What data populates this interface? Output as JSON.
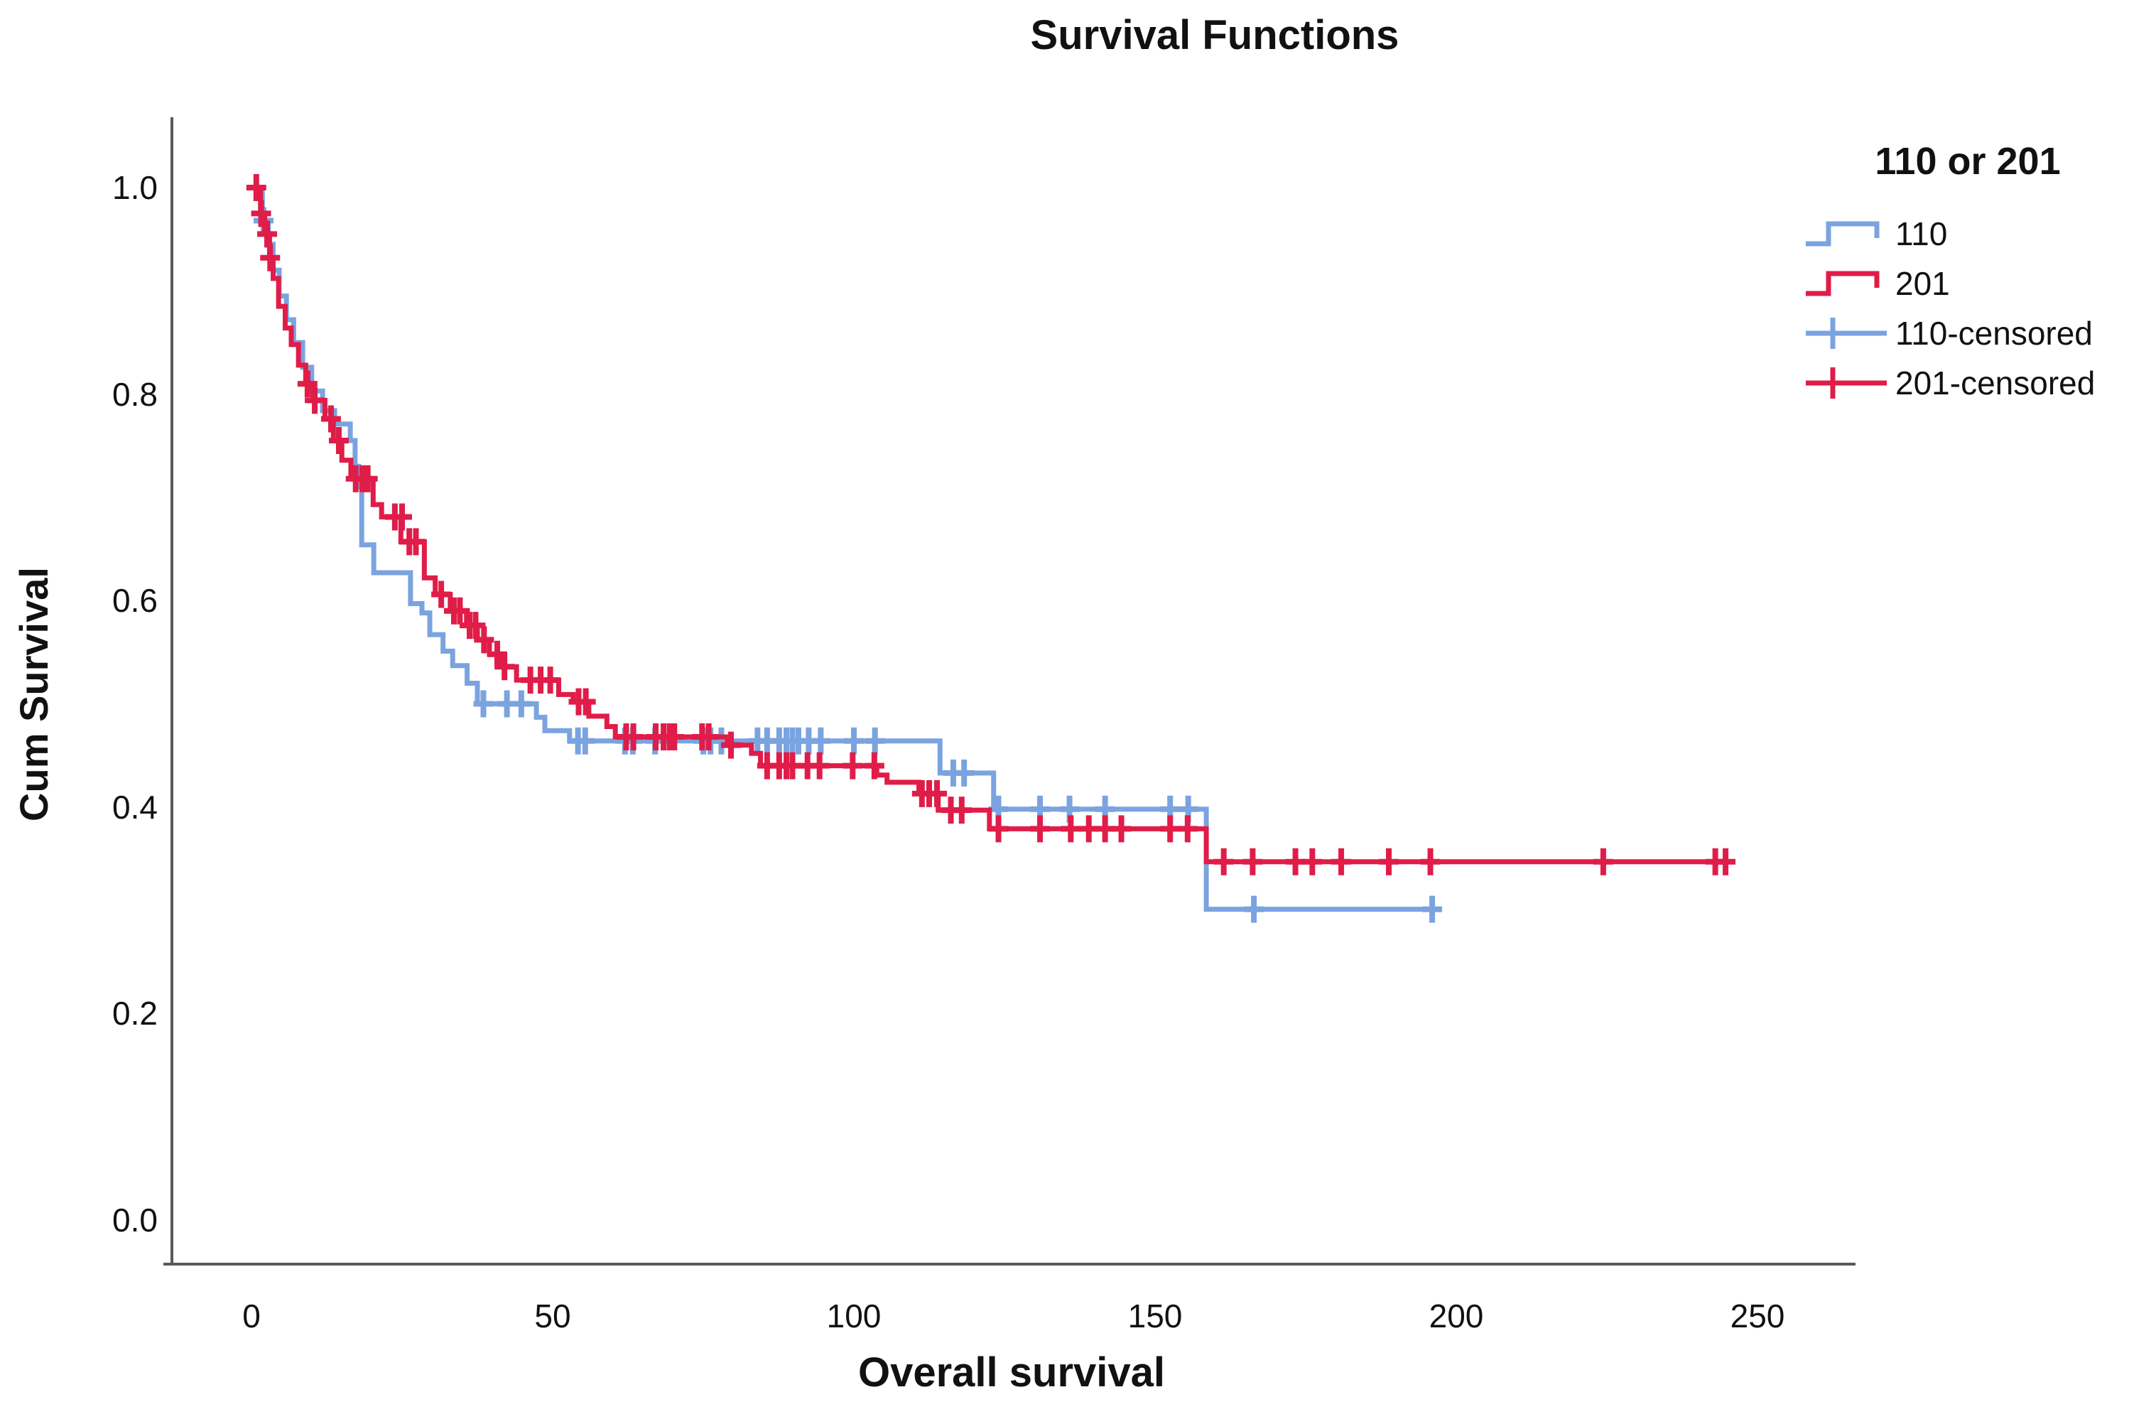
{
  "title": "Survival Functions",
  "y_axis": {
    "label": "Cum Survival",
    "ticks": [
      "1.0",
      "0.8",
      "0.6",
      "0.4",
      "0.2",
      "0.0"
    ]
  },
  "x_axis": {
    "label": "Overall survival",
    "ticks": [
      "0",
      "50",
      "100",
      "150",
      "200",
      "250"
    ]
  },
  "legend": {
    "title": "110 or 201",
    "entries": [
      {
        "label": "110",
        "type": "step",
        "color": "#7AA3E0"
      },
      {
        "label": "201",
        "type": "step",
        "color": "#E01C48"
      },
      {
        "label": "110-censored",
        "type": "censored",
        "color": "#7AA3E0"
      },
      {
        "label": "201-censored",
        "type": "censored",
        "color": "#E01C48"
      }
    ]
  },
  "colors": {
    "blue": "#7AA3E0",
    "red": "#E01C48",
    "axis": "#595959",
    "text": "#111111",
    "background": "#ffffff"
  },
  "chart_data": {
    "type": "line",
    "subtype": "kaplan-meier-step",
    "title": "Survival Functions",
    "xlabel": "Overall survival",
    "ylabel": "Cum Survival",
    "xlim": [
      0,
      265
    ],
    "ylim": [
      0.0,
      1.05
    ],
    "x_ticks": [
      0,
      50,
      100,
      150,
      200,
      250
    ],
    "y_ticks": [
      1.0,
      0.8,
      0.6,
      0.4,
      0.2,
      0.0
    ],
    "grid": false,
    "legend_position": "right",
    "series": [
      {
        "name": "110",
        "color": "#7AA3E0",
        "end_time": 197.5,
        "steps": [
          [
            0,
            1.0
          ],
          [
            1.8,
            0.968
          ],
          [
            2.8,
            0.945
          ],
          [
            3.6,
            0.92
          ],
          [
            4.6,
            0.895
          ],
          [
            5.8,
            0.872
          ],
          [
            7,
            0.85
          ],
          [
            8.5,
            0.826
          ],
          [
            10,
            0.803
          ],
          [
            11.8,
            0.784
          ],
          [
            13.8,
            0.771
          ],
          [
            16.4,
            0.755
          ],
          [
            17.2,
            0.73
          ],
          [
            17.8,
            0.71
          ],
          [
            18.3,
            0.654
          ],
          [
            20.3,
            0.627
          ],
          [
            26.4,
            0.597
          ],
          [
            28.3,
            0.588
          ],
          [
            29.6,
            0.567
          ],
          [
            31.8,
            0.551
          ],
          [
            33.4,
            0.537
          ],
          [
            35.8,
            0.52
          ],
          [
            37.5,
            0.5
          ],
          [
            47.3,
            0.487
          ],
          [
            48.7,
            0.474
          ],
          [
            52.8,
            0.464
          ],
          [
            114.3,
            0.433
          ],
          [
            123.2,
            0.398
          ],
          [
            158.5,
            0.301
          ]
        ],
        "censors": [
          [
            2,
            0.968
          ],
          [
            38.5,
            0.5
          ],
          [
            42.4,
            0.5
          ],
          [
            44.8,
            0.5
          ],
          [
            54.2,
            0.464
          ],
          [
            55.4,
            0.464
          ],
          [
            62,
            0.464
          ],
          [
            63.3,
            0.464
          ],
          [
            67,
            0.464
          ],
          [
            75,
            0.464
          ],
          [
            76.2,
            0.464
          ],
          [
            78,
            0.464
          ],
          [
            84,
            0.464
          ],
          [
            85.6,
            0.464
          ],
          [
            87.6,
            0.464
          ],
          [
            88.8,
            0.464
          ],
          [
            89.8,
            0.464
          ],
          [
            90.8,
            0.464
          ],
          [
            92.5,
            0.464
          ],
          [
            94.5,
            0.464
          ],
          [
            100,
            0.464
          ],
          [
            103.5,
            0.464
          ],
          [
            116.5,
            0.433
          ],
          [
            118.3,
            0.433
          ],
          [
            124,
            0.398
          ],
          [
            130.9,
            0.398
          ],
          [
            135.8,
            0.398
          ],
          [
            141.7,
            0.398
          ],
          [
            152.5,
            0.398
          ],
          [
            155.5,
            0.398
          ],
          [
            166.4,
            0.301
          ],
          [
            196,
            0.301
          ]
        ]
      },
      {
        "name": "201",
        "color": "#E01C48",
        "end_time": 245.6,
        "steps": [
          [
            0,
            1.0
          ],
          [
            1.5,
            0.975
          ],
          [
            2.2,
            0.955
          ],
          [
            3,
            0.932
          ],
          [
            3.6,
            0.912
          ],
          [
            4.5,
            0.885
          ],
          [
            5.6,
            0.864
          ],
          [
            6.6,
            0.848
          ],
          [
            7.8,
            0.828
          ],
          [
            9,
            0.81
          ],
          [
            10.2,
            0.794
          ],
          [
            12.2,
            0.776
          ],
          [
            13.6,
            0.755
          ],
          [
            15,
            0.736
          ],
          [
            16.5,
            0.718
          ],
          [
            20.2,
            0.693
          ],
          [
            21.6,
            0.681
          ],
          [
            24.8,
            0.657
          ],
          [
            28.7,
            0.622
          ],
          [
            30.5,
            0.606
          ],
          [
            33,
            0.59
          ],
          [
            35.7,
            0.576
          ],
          [
            37.5,
            0.562
          ],
          [
            39.5,
            0.548
          ],
          [
            41.5,
            0.536
          ],
          [
            44,
            0.523
          ],
          [
            51,
            0.509
          ],
          [
            53.4,
            0.502
          ],
          [
            56,
            0.488
          ],
          [
            59,
            0.478
          ],
          [
            60.4,
            0.468
          ],
          [
            79,
            0.46
          ],
          [
            83,
            0.452
          ],
          [
            84.5,
            0.44
          ],
          [
            103.8,
            0.431
          ],
          [
            105.5,
            0.424
          ],
          [
            110.8,
            0.413
          ],
          [
            114,
            0.397
          ],
          [
            122.5,
            0.379
          ],
          [
            158.5,
            0.347
          ]
        ],
        "censors": [
          [
            0.8,
            1.0
          ],
          [
            1.6,
            0.975
          ],
          [
            2.6,
            0.955
          ],
          [
            3.1,
            0.932
          ],
          [
            9.3,
            0.81
          ],
          [
            10.5,
            0.794
          ],
          [
            13.2,
            0.776
          ],
          [
            14.5,
            0.755
          ],
          [
            17.3,
            0.718
          ],
          [
            18.4,
            0.718
          ],
          [
            19.3,
            0.718
          ],
          [
            23.8,
            0.681
          ],
          [
            25,
            0.681
          ],
          [
            26.2,
            0.657
          ],
          [
            27.3,
            0.657
          ],
          [
            31.5,
            0.606
          ],
          [
            33.6,
            0.59
          ],
          [
            34.6,
            0.59
          ],
          [
            36.2,
            0.576
          ],
          [
            37.2,
            0.576
          ],
          [
            38.6,
            0.562
          ],
          [
            40.8,
            0.548
          ],
          [
            42,
            0.536
          ],
          [
            46.3,
            0.523
          ],
          [
            48,
            0.523
          ],
          [
            49.6,
            0.523
          ],
          [
            54.3,
            0.502
          ],
          [
            55.5,
            0.502
          ],
          [
            62.2,
            0.468
          ],
          [
            63.4,
            0.468
          ],
          [
            67.1,
            0.468
          ],
          [
            68.4,
            0.468
          ],
          [
            69.4,
            0.468
          ],
          [
            70.2,
            0.468
          ],
          [
            74.8,
            0.468
          ],
          [
            75.9,
            0.468
          ],
          [
            79.6,
            0.46
          ],
          [
            85.6,
            0.44
          ],
          [
            87.6,
            0.44
          ],
          [
            88.8,
            0.44
          ],
          [
            89.8,
            0.44
          ],
          [
            92.3,
            0.44
          ],
          [
            94.3,
            0.44
          ],
          [
            99.8,
            0.44
          ],
          [
            103.4,
            0.44
          ],
          [
            111.3,
            0.413
          ],
          [
            112.5,
            0.413
          ],
          [
            113.8,
            0.413
          ],
          [
            116.1,
            0.397
          ],
          [
            117.9,
            0.397
          ],
          [
            124,
            0.379
          ],
          [
            130.9,
            0.379
          ],
          [
            136,
            0.379
          ],
          [
            139,
            0.379
          ],
          [
            141.7,
            0.379
          ],
          [
            144.4,
            0.379
          ],
          [
            152.5,
            0.379
          ],
          [
            155.4,
            0.379
          ],
          [
            161.4,
            0.347
          ],
          [
            166.2,
            0.347
          ],
          [
            173.3,
            0.347
          ],
          [
            176.1,
            0.347
          ],
          [
            180.9,
            0.347
          ],
          [
            188.8,
            0.347
          ],
          [
            195.7,
            0.347
          ],
          [
            224.4,
            0.347
          ],
          [
            243,
            0.347
          ],
          [
            244.7,
            0.347
          ]
        ]
      }
    ]
  }
}
